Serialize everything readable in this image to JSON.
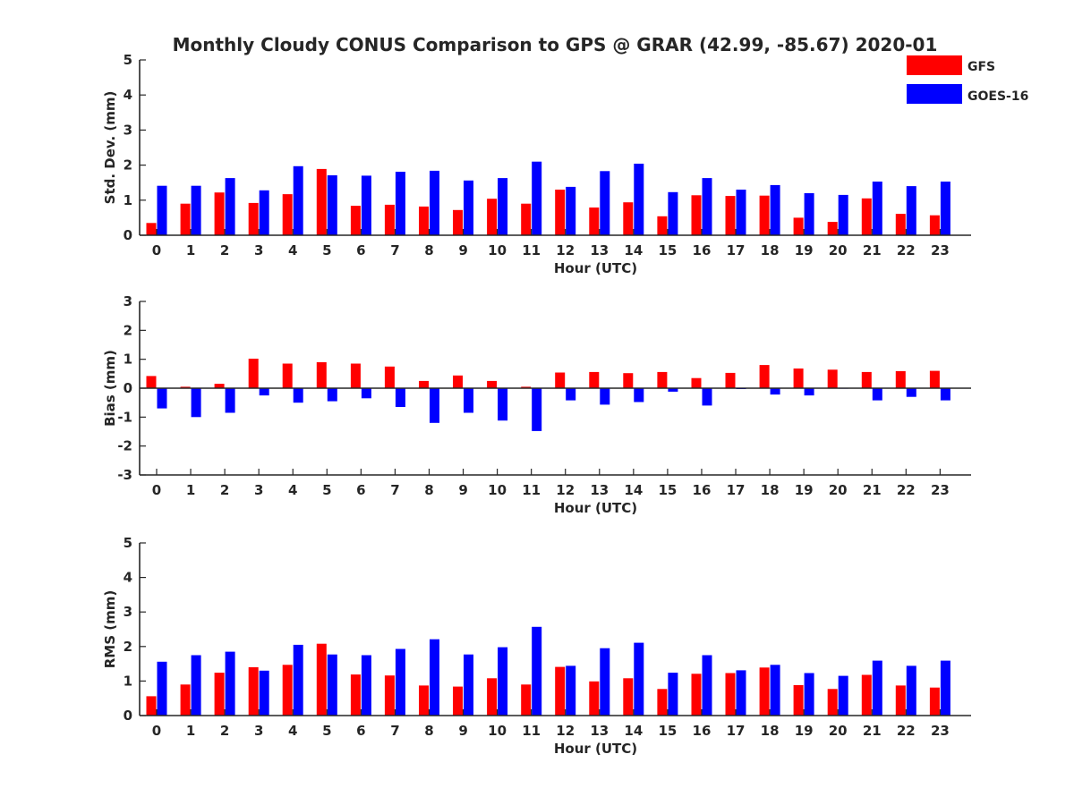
{
  "title": "Monthly Cloudy CONUS Comparison to GPS @ GRAR (42.99, -85.67) 2020-01",
  "legend": [
    {
      "name": "GFS",
      "color": "#ff0000"
    },
    {
      "name": "GOES-16",
      "color": "#0000ff"
    }
  ],
  "chart_data": [
    {
      "type": "bar",
      "xlabel": "Hour (UTC)",
      "ylabel": "Std. Dev. (mm)",
      "ylim": [
        0,
        5
      ],
      "yticks": [
        0,
        1,
        2,
        3,
        4,
        5
      ],
      "categories": [
        "0",
        "1",
        "2",
        "3",
        "4",
        "5",
        "6",
        "7",
        "8",
        "9",
        "10",
        "11",
        "12",
        "13",
        "14",
        "15",
        "16",
        "17",
        "18",
        "19",
        "20",
        "21",
        "22",
        "23"
      ],
      "series": [
        {
          "name": "GFS",
          "color": "#ff0000",
          "values": [
            0.35,
            0.9,
            1.22,
            0.92,
            1.17,
            1.89,
            0.84,
            0.87,
            0.82,
            0.72,
            1.04,
            0.9,
            1.3,
            0.79,
            0.94,
            0.54,
            1.14,
            1.12,
            1.13,
            0.5,
            0.38,
            1.05,
            0.61,
            0.57
          ]
        },
        {
          "name": "GOES-16",
          "color": "#0000ff",
          "values": [
            1.41,
            1.41,
            1.63,
            1.28,
            1.97,
            1.71,
            1.7,
            1.81,
            1.84,
            1.56,
            1.63,
            2.1,
            1.38,
            1.83,
            2.04,
            1.23,
            1.63,
            1.3,
            1.43,
            1.2,
            1.15,
            1.53,
            1.4,
            1.53
          ]
        }
      ]
    },
    {
      "type": "bar",
      "xlabel": "Hour (UTC)",
      "ylabel": "Bias (mm)",
      "ylim": [
        -3,
        3
      ],
      "yticks": [
        -3,
        -2,
        -1,
        0,
        1,
        2,
        3
      ],
      "categories": [
        "0",
        "1",
        "2",
        "3",
        "4",
        "5",
        "6",
        "7",
        "8",
        "9",
        "10",
        "11",
        "12",
        "13",
        "14",
        "15",
        "16",
        "17",
        "18",
        "19",
        "20",
        "21",
        "22",
        "23"
      ],
      "series": [
        {
          "name": "GFS",
          "color": "#ff0000",
          "values": [
            0.42,
            0.05,
            0.15,
            1.02,
            0.85,
            0.9,
            0.85,
            0.75,
            0.25,
            0.44,
            0.25,
            0.05,
            0.54,
            0.56,
            0.52,
            0.56,
            0.35,
            0.53,
            0.8,
            0.68,
            0.64,
            0.56,
            0.59,
            0.6
          ]
        },
        {
          "name": "GOES-16",
          "color": "#0000ff",
          "values": [
            -0.7,
            -1.0,
            -0.85,
            -0.25,
            -0.5,
            -0.45,
            -0.35,
            -0.65,
            -1.2,
            -0.85,
            -1.12,
            -1.48,
            -0.42,
            -0.57,
            -0.48,
            -0.12,
            -0.6,
            -0.03,
            -0.22,
            -0.25,
            -0.02,
            -0.42,
            -0.3,
            -0.42
          ]
        }
      ]
    },
    {
      "type": "bar",
      "xlabel": "Hour (UTC)",
      "ylabel": "RMS (mm)",
      "ylim": [
        0,
        5
      ],
      "yticks": [
        0,
        1,
        2,
        3,
        4,
        5
      ],
      "categories": [
        "0",
        "1",
        "2",
        "3",
        "4",
        "5",
        "6",
        "7",
        "8",
        "9",
        "10",
        "11",
        "12",
        "13",
        "14",
        "15",
        "16",
        "17",
        "18",
        "19",
        "20",
        "21",
        "22",
        "23"
      ],
      "series": [
        {
          "name": "GFS",
          "color": "#ff0000",
          "values": [
            0.56,
            0.9,
            1.24,
            1.4,
            1.47,
            2.08,
            1.19,
            1.16,
            0.87,
            0.84,
            1.08,
            0.9,
            1.41,
            0.99,
            1.08,
            0.77,
            1.21,
            1.23,
            1.39,
            0.88,
            0.77,
            1.18,
            0.87,
            0.81
          ]
        },
        {
          "name": "GOES-16",
          "color": "#0000ff",
          "values": [
            1.56,
            1.75,
            1.85,
            1.3,
            2.05,
            1.77,
            1.75,
            1.93,
            2.21,
            1.77,
            1.98,
            2.57,
            1.44,
            1.95,
            2.11,
            1.24,
            1.75,
            1.31,
            1.47,
            1.23,
            1.15,
            1.59,
            1.44,
            1.59
          ]
        }
      ]
    }
  ]
}
